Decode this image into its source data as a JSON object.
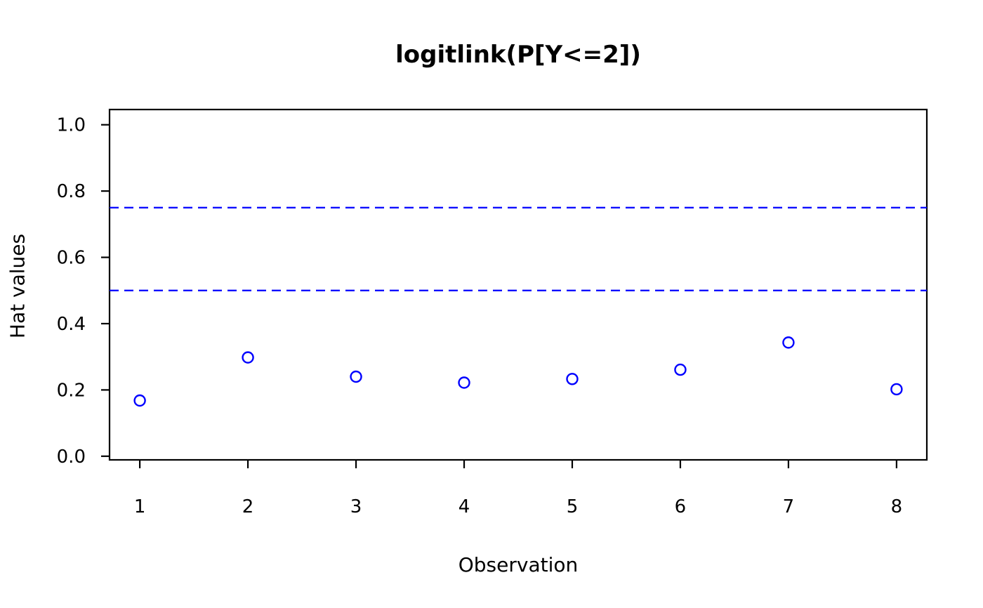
{
  "chart_data": {
    "type": "scatter",
    "title": "logitlink(P[Y<=2])",
    "xlabel": "Observation",
    "ylabel": "Hat values",
    "x": [
      1,
      2,
      3,
      4,
      5,
      6,
      7,
      8
    ],
    "values": [
      0.168,
      0.298,
      0.24,
      0.222,
      0.233,
      0.261,
      0.343,
      0.202
    ],
    "series_name": "hat-values",
    "xticks": [
      1,
      2,
      3,
      4,
      5,
      6,
      7,
      8
    ],
    "xtick_labels": [
      "1",
      "2",
      "3",
      "4",
      "5",
      "6",
      "7",
      "8"
    ],
    "yticks": [
      0.0,
      0.2,
      0.4,
      0.6,
      0.8,
      1.0
    ],
    "ytick_labels": [
      "0.0",
      "0.2",
      "0.4",
      "0.6",
      "0.8",
      "1.0"
    ],
    "xlim": [
      0.72,
      8.28
    ],
    "ylim": [
      -0.011,
      1.046
    ],
    "grid": "off",
    "legend": "none",
    "reference_lines": [
      {
        "y": 0.5,
        "style": "dashed",
        "color": "#0000FF"
      },
      {
        "y": 0.75,
        "style": "dashed",
        "color": "#0000FF"
      }
    ],
    "marker": {
      "shape": "open-circle",
      "color": "#0000FF"
    },
    "axis_color": "#000000",
    "background_color": "#FFFFFF"
  }
}
